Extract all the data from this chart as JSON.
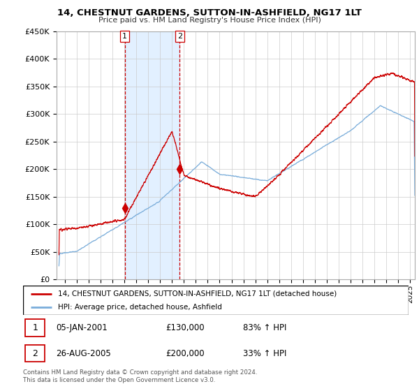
{
  "title": "14, CHESTNUT GARDENS, SUTTON-IN-ASHFIELD, NG17 1LT",
  "subtitle": "Price paid vs. HM Land Registry's House Price Index (HPI)",
  "ylim": [
    0,
    450000
  ],
  "yticks": [
    0,
    50000,
    100000,
    150000,
    200000,
    250000,
    300000,
    350000,
    400000,
    450000
  ],
  "xlim_start": 1995.5,
  "xlim_end": 2025.4,
  "red_color": "#cc0000",
  "blue_color": "#7aadda",
  "shade_color": "#ddeeff",
  "vline_color": "#cc0000",
  "transaction1": {
    "date_year": 2001.03,
    "price": 130000,
    "label": "1"
  },
  "transaction2": {
    "date_year": 2005.65,
    "price": 200000,
    "label": "2"
  },
  "legend_red": "14, CHESTNUT GARDENS, SUTTON-IN-ASHFIELD, NG17 1LT (detached house)",
  "legend_blue": "HPI: Average price, detached house, Ashfield",
  "footer": "Contains HM Land Registry data © Crown copyright and database right 2024.\nThis data is licensed under the Open Government Licence v3.0.",
  "table_rows": [
    {
      "num": "1",
      "date": "05-JAN-2001",
      "price": "£130,000",
      "hpi": "83% ↑ HPI"
    },
    {
      "num": "2",
      "date": "26-AUG-2005",
      "price": "£200,000",
      "hpi": "33% ↑ HPI"
    }
  ]
}
